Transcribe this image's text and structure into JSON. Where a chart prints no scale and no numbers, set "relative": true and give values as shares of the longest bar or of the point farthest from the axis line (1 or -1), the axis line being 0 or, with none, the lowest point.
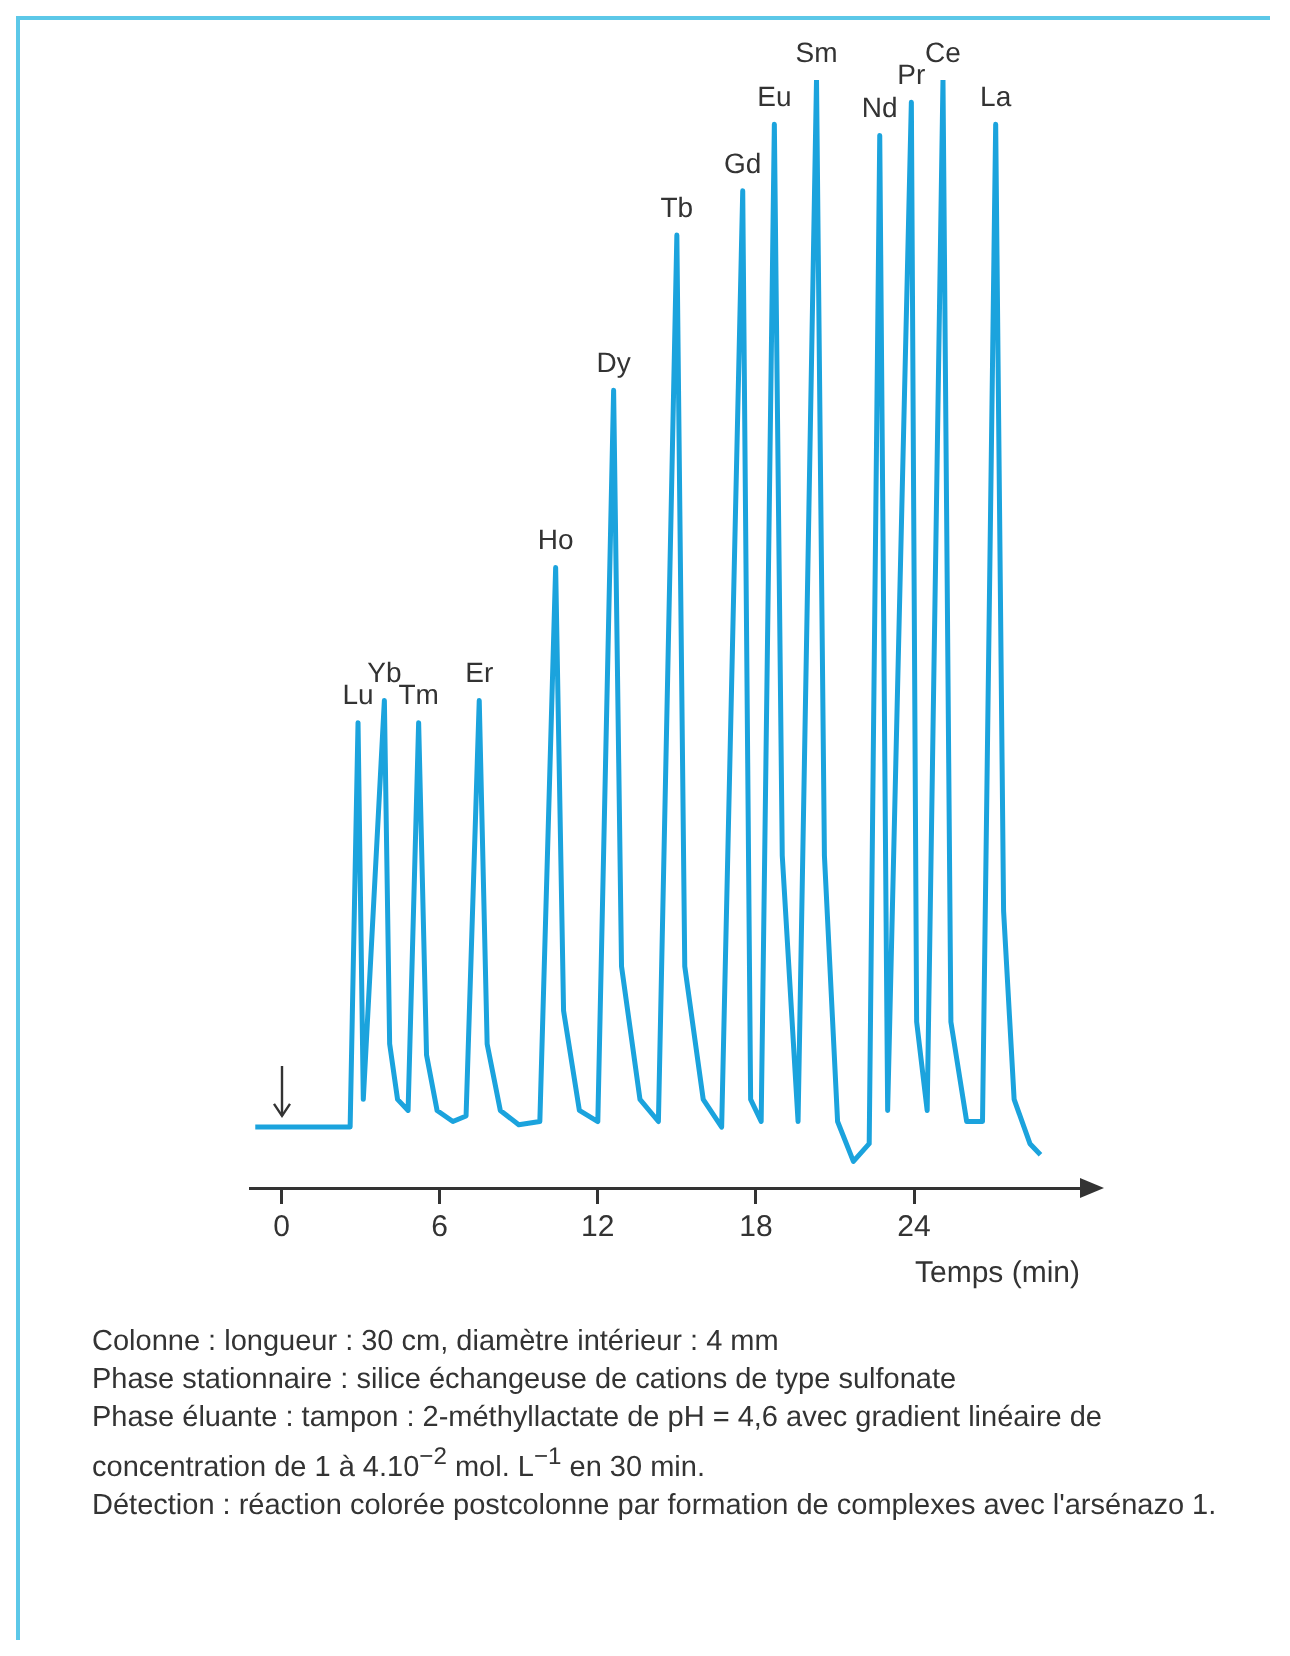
{
  "chart_data": {
    "type": "line",
    "relative": true,
    "xlabel": "Temps (min)",
    "xlim": [
      -1.2,
      30.3
    ],
    "xticks": [
      0,
      6,
      12,
      18,
      24
    ],
    "grid": false,
    "legend": false,
    "marker": "none",
    "line_style": "solid",
    "series": [
      {
        "color": "#1ba3dd",
        "x": [
          -1,
          2.6,
          2.9,
          3.1,
          3.9,
          4.1,
          4.4,
          4.8,
          5.2,
          5.5,
          5.9,
          6.5,
          7.0,
          7.5,
          7.8,
          8.3,
          9.0,
          9.8,
          10.4,
          10.7,
          11.3,
          12.0,
          12.6,
          12.9,
          13.6,
          14.3,
          15.0,
          15.3,
          16.0,
          16.7,
          17.5,
          17.8,
          18.2,
          18.7,
          19.0,
          19.6,
          20.3,
          20.6,
          21.1,
          21.7,
          22.3,
          22.7,
          23.0,
          23.9,
          24.1,
          24.5,
          25.1,
          25.4,
          26.0,
          26.6,
          27.1,
          27.4,
          27.8,
          28.4,
          28.8
        ],
        "values": [
          0.055,
          0.055,
          0.42,
          0.08,
          0.44,
          0.13,
          0.08,
          0.07,
          0.42,
          0.12,
          0.07,
          0.06,
          0.065,
          0.44,
          0.13,
          0.07,
          0.057,
          0.06,
          0.56,
          0.16,
          0.07,
          0.06,
          0.72,
          0.2,
          0.08,
          0.06,
          0.86,
          0.2,
          0.08,
          0.055,
          0.9,
          0.08,
          0.06,
          0.96,
          0.3,
          0.06,
          1.0,
          0.3,
          0.06,
          0.024,
          0.04,
          0.95,
          0.07,
          0.98,
          0.15,
          0.07,
          1.0,
          0.15,
          0.06,
          0.06,
          0.96,
          0.25,
          0.08,
          0.04,
          0.03
        ]
      }
    ],
    "annotations": [
      {
        "text": "Lu",
        "x": 2.9,
        "y": 0.42
      },
      {
        "text": "Yb",
        "x": 3.9,
        "y": 0.44
      },
      {
        "text": "Tm",
        "x": 5.2,
        "y": 0.42
      },
      {
        "text": "Er",
        "x": 7.5,
        "y": 0.44
      },
      {
        "text": "Ho",
        "x": 10.4,
        "y": 0.56
      },
      {
        "text": "Dy",
        "x": 12.6,
        "y": 0.72
      },
      {
        "text": "Tb",
        "x": 15.0,
        "y": 0.86
      },
      {
        "text": "Gd",
        "x": 17.5,
        "y": 0.9
      },
      {
        "text": "Eu",
        "x": 18.7,
        "y": 0.96
      },
      {
        "text": "Sm",
        "x": 20.3,
        "y": 1.0
      },
      {
        "text": "Nd",
        "x": 22.7,
        "y": 0.95
      },
      {
        "text": "Pr",
        "x": 23.9,
        "y": 0.98
      },
      {
        "text": "Ce",
        "x": 25.1,
        "y": 1.0
      },
      {
        "text": "La",
        "x": 27.1,
        "y": 0.96
      },
      "Colonne : longueur : 30 cm, diamètre intérieur : 4 mm",
      "Phase stationnaire : silice échangeuse de cations de type sulfonate",
      "Phase éluante : tampon : 2-méthyllactate de pH = 4,6 avec gradient linéaire de concentration de 1 à 4.10$^{−2}$ mol. L$^{−1}$ en 30 min.",
      "Détection : réaction colorée postcolonne par formation de complexes avec l'arsénazo 1."
    ]
  }
}
